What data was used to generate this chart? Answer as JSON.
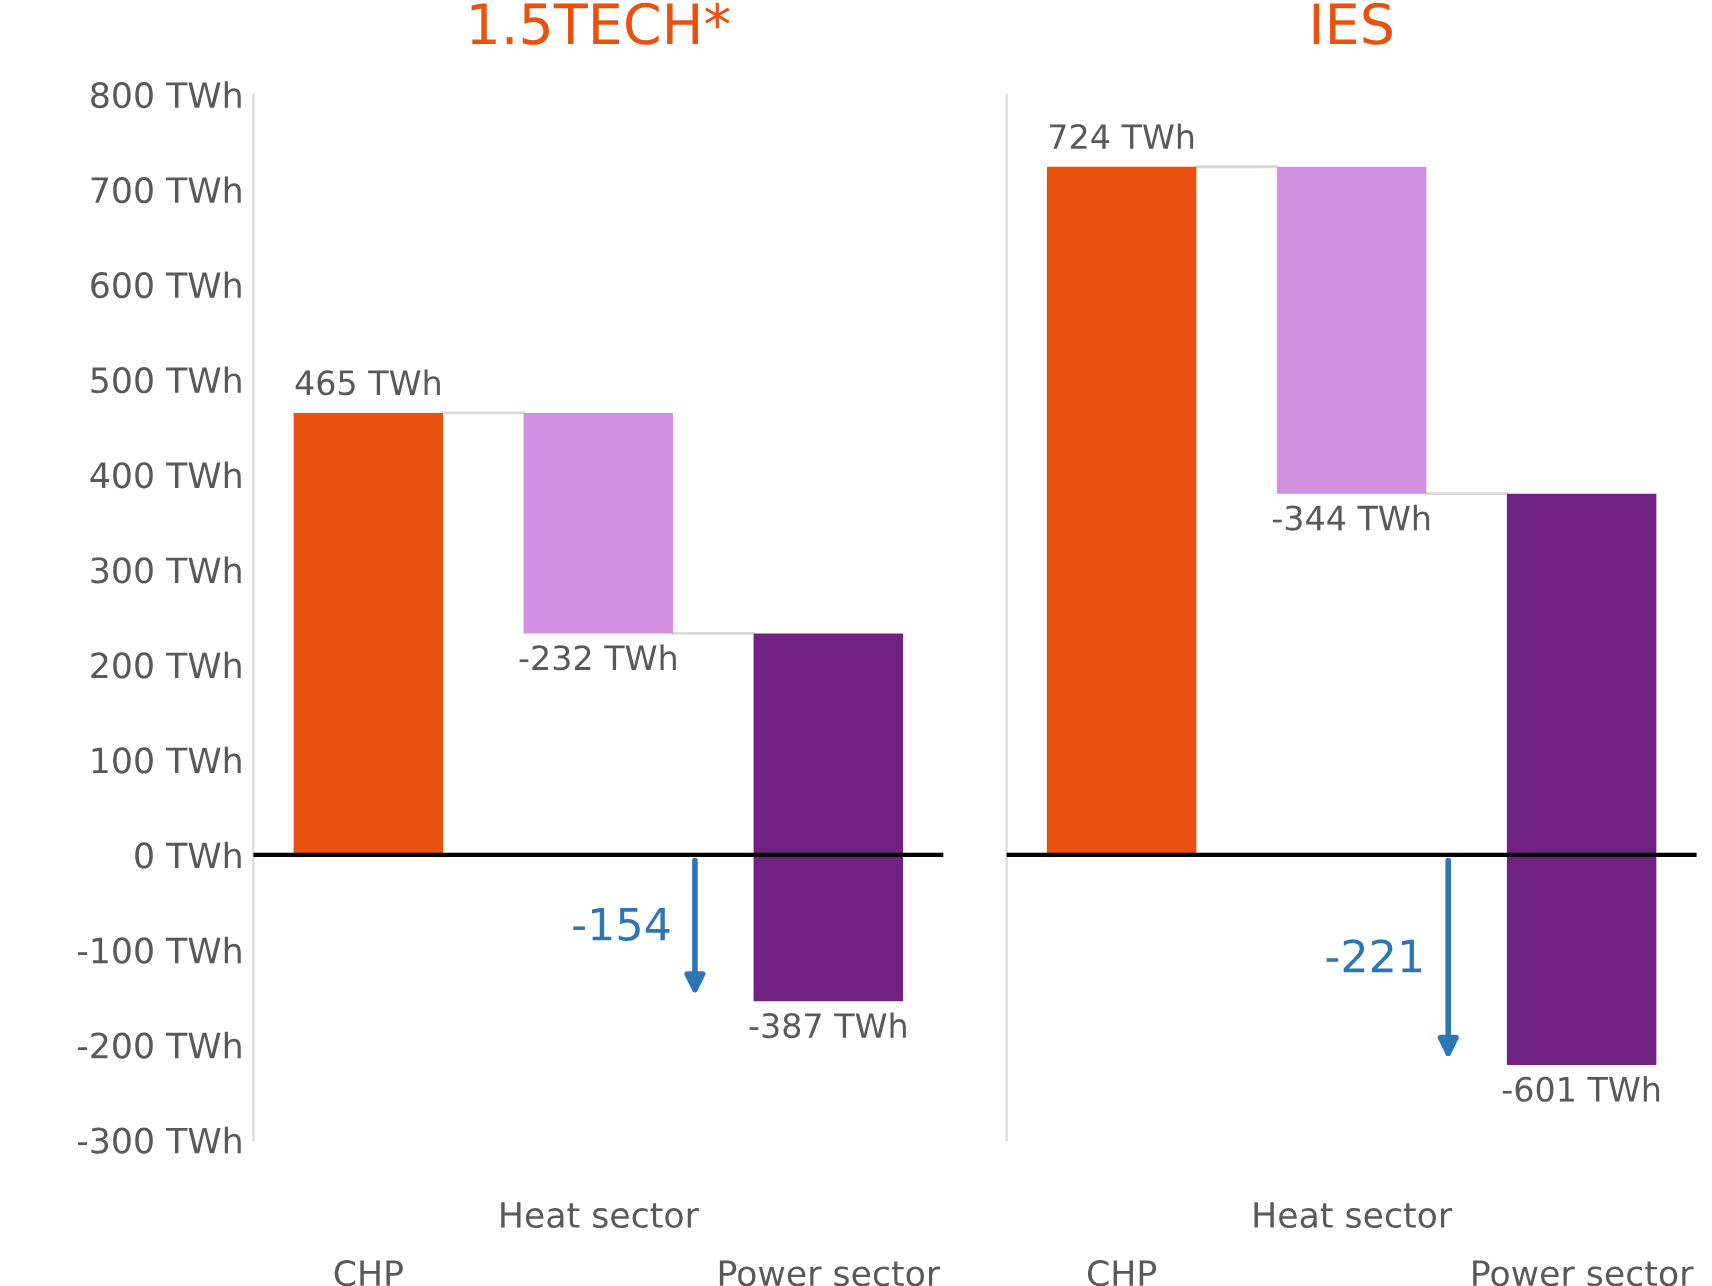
{
  "chart_data": [
    {
      "type": "bar",
      "title": "1.5TECH*",
      "categories": [
        "CHP",
        "Heat sector",
        "Power sector"
      ],
      "values": [
        465,
        -232,
        -387
      ],
      "base": [
        0,
        465,
        233
      ],
      "colors": [
        "#e8510f",
        "#d291e0",
        "#6f2282"
      ],
      "value_labels": [
        "465 TWh",
        "-232 TWh",
        "-387 TWh"
      ],
      "ylim": [
        -300,
        800
      ],
      "yticks": [
        {
          "value": -300,
          "label": "-300 TWh"
        },
        {
          "value": -200,
          "label": "-200 TWh"
        },
        {
          "value": -100,
          "label": "-100 TWh"
        },
        {
          "value": 0,
          "label": "0 TWh"
        },
        {
          "value": 100,
          "label": "100 TWh"
        },
        {
          "value": 200,
          "label": "200 TWh"
        },
        {
          "value": 300,
          "label": "300 TWh"
        },
        {
          "value": 400,
          "label": "400 TWh"
        },
        {
          "value": 500,
          "label": "500 TWh"
        },
        {
          "value": 600,
          "label": "600 TWh"
        },
        {
          "value": 700,
          "label": "700 TWh"
        },
        {
          "value": 800,
          "label": "800 TWh"
        }
      ],
      "ref_lines": [
        {
          "axis": "y",
          "value": 0,
          "color": "#000000"
        }
      ],
      "annotations": [
        "-154"
      ],
      "grid": false,
      "legend": false
    },
    {
      "type": "bar",
      "title": "IES",
      "categories": [
        "CHP",
        "Heat sector",
        "Power sector"
      ],
      "values": [
        724,
        -344,
        -601
      ],
      "base": [
        0,
        724,
        380
      ],
      "colors": [
        "#e8510f",
        "#d291e0",
        "#6f2282"
      ],
      "value_labels": [
        "724 TWh",
        "-344 TWh",
        "-601 TWh"
      ],
      "ylim": [
        -300,
        800
      ],
      "ref_lines": [
        {
          "axis": "y",
          "value": 0,
          "color": "#000000"
        }
      ],
      "annotations": [
        "-221"
      ],
      "tick_labels": "x",
      "grid": false,
      "legend": false
    }
  ]
}
